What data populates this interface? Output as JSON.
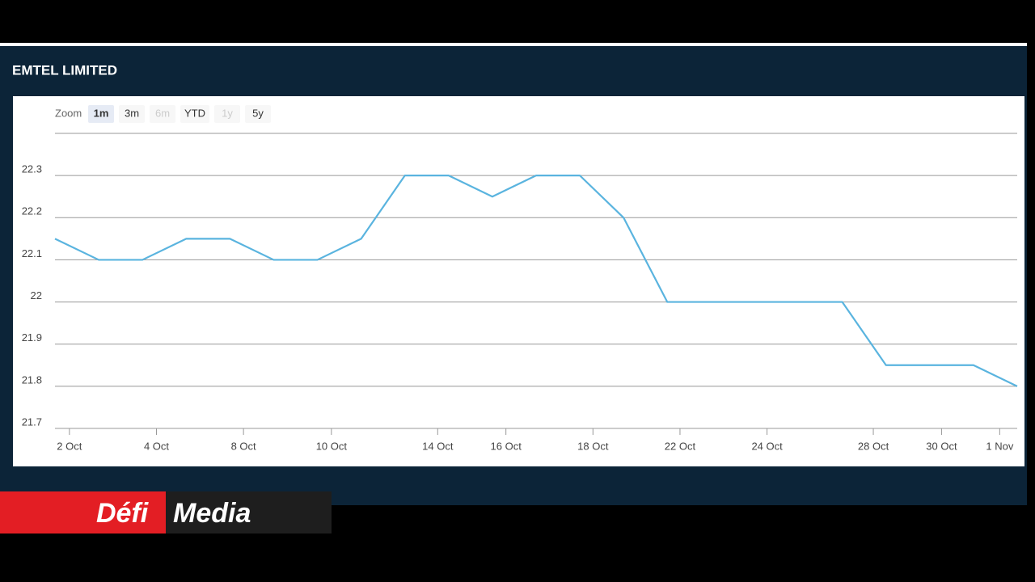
{
  "title": "EMTEL LIMITED",
  "zoom": {
    "label": "Zoom",
    "buttons": [
      {
        "text": "1m",
        "selected": true,
        "disabled": false
      },
      {
        "text": "3m",
        "selected": false,
        "disabled": false
      },
      {
        "text": "6m",
        "selected": false,
        "disabled": true
      },
      {
        "text": "YTD",
        "selected": false,
        "disabled": false
      },
      {
        "text": "1y",
        "selected": false,
        "disabled": true
      },
      {
        "text": "5y",
        "selected": false,
        "disabled": false
      }
    ]
  },
  "logo": {
    "left": "Défi",
    "right": "Media"
  },
  "chart_data": {
    "type": "line",
    "x": [
      0,
      1,
      2,
      3,
      4,
      5,
      6,
      7,
      8,
      9,
      10,
      11,
      12,
      13,
      14,
      15,
      16,
      17,
      18,
      19,
      20,
      21,
      22
    ],
    "series": [
      {
        "name": "EMTEL LIMITED",
        "color": "#5ab4df",
        "values": [
          22.15,
          22.1,
          22.1,
          22.15,
          22.15,
          22.1,
          22.1,
          22.15,
          22.3,
          22.3,
          22.25,
          22.3,
          22.3,
          22.2,
          22.0,
          22.0,
          22.0,
          22.0,
          22.0,
          21.85,
          21.85,
          21.85,
          21.8
        ]
      }
    ],
    "xlim": [
      0,
      22
    ],
    "xticks": [
      {
        "value": 0.33,
        "label": "2 Oct"
      },
      {
        "value": 2.32,
        "label": "4 Oct"
      },
      {
        "value": 4.31,
        "label": "8 Oct"
      },
      {
        "value": 6.32,
        "label": "10 Oct"
      },
      {
        "value": 8.75,
        "label": "14 Oct"
      },
      {
        "value": 10.31,
        "label": "16 Oct"
      },
      {
        "value": 12.3,
        "label": "18 Oct"
      },
      {
        "value": 14.29,
        "label": "22 Oct"
      },
      {
        "value": 16.28,
        "label": "24 Oct"
      },
      {
        "value": 18.71,
        "label": "28 Oct"
      },
      {
        "value": 20.27,
        "label": "30 Oct"
      },
      {
        "value": 21.6,
        "label": "1 Nov"
      }
    ],
    "ylim": [
      21.7,
      22.4
    ],
    "yticks": [
      21.7,
      21.8,
      21.9,
      22,
      22.1,
      22.2,
      22.3
    ],
    "grid": true
  }
}
